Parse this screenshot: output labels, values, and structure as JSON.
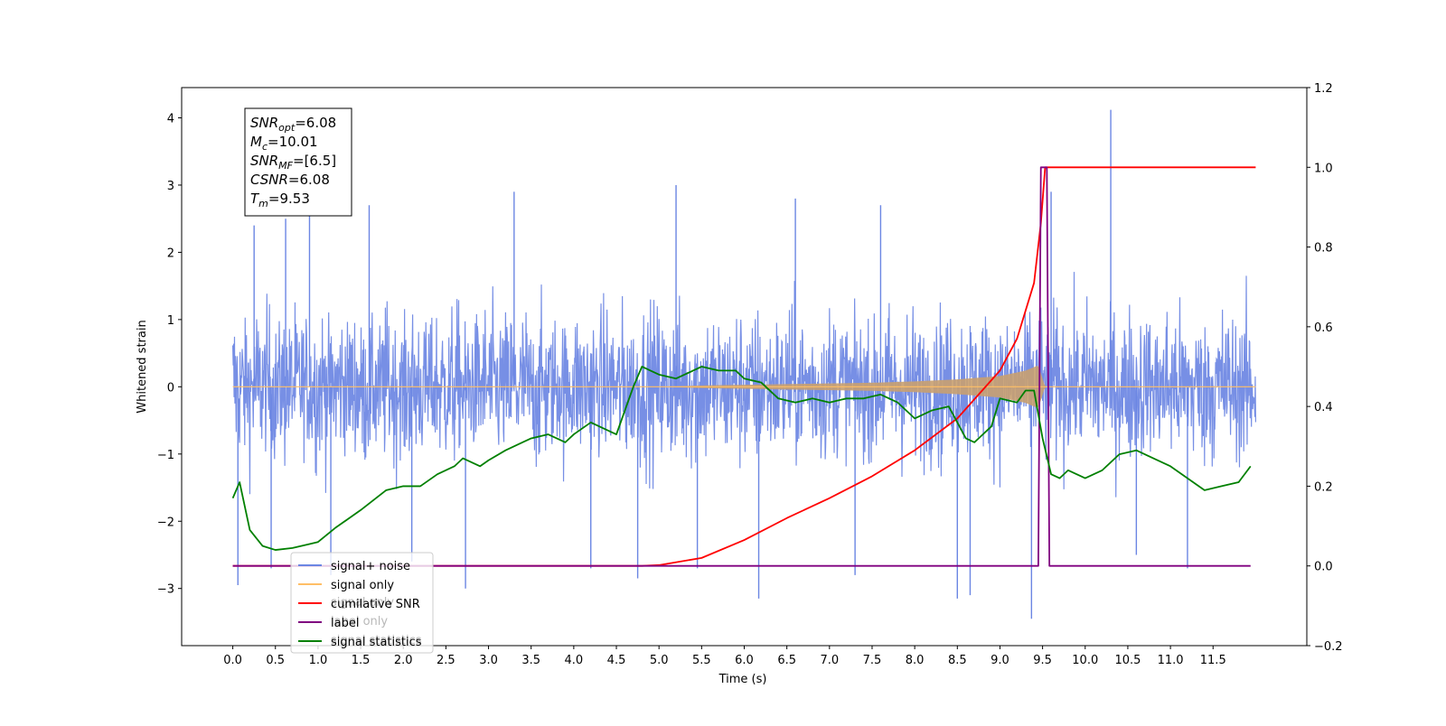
{
  "chart_data": {
    "type": "line",
    "xlabel": "Time (s)",
    "ylabel_left": "Whitened strain",
    "ylabel_right": "",
    "xlim": [
      -0.6,
      12.6
    ],
    "ylim_left": [
      -3.85,
      4.45
    ],
    "ylim_right": [
      -0.2,
      1.2
    ],
    "x_ticks": [
      "0.0",
      "0.5",
      "1.0",
      "1.5",
      "2.0",
      "2.5",
      "3.0",
      "3.5",
      "4.0",
      "4.5",
      "5.0",
      "5.5",
      "6.0",
      "6.5",
      "7.0",
      "7.5",
      "8.0",
      "8.5",
      "9.0",
      "9.5",
      "10.0",
      "10.5",
      "11.0",
      "11.5"
    ],
    "y_ticks_left": [
      "−3",
      "−2",
      "−1",
      "0",
      "1",
      "2",
      "3",
      "4"
    ],
    "y_ticks_right": [
      "−0.2",
      "0.0",
      "0.2",
      "0.4",
      "0.6",
      "0.8",
      "1.0",
      "1.2"
    ],
    "grid": false,
    "legend_position": "lower-left",
    "legend": [
      {
        "label": "signal+ noise",
        "color": "#6b86e3"
      },
      {
        "label": "signal only",
        "color": "#ffbf66"
      },
      {
        "label": "cumilative SNR",
        "color": "#ff0000"
      },
      {
        "label": "label",
        "color": "#800080"
      },
      {
        "label": "signal statistics",
        "color": "#008000"
      }
    ],
    "legend_hidden_text": [
      "signal only",
      "label only",
      "signal statistics"
    ],
    "annotation": [
      {
        "base": "SNR",
        "sub": "opt",
        "value": "=6.08"
      },
      {
        "base": "M",
        "sub": "c",
        "value": "=10.01"
      },
      {
        "base": "SNR",
        "sub": "MF",
        "value": "=[6.5]"
      },
      {
        "base": "CSNR",
        "sub": "",
        "value": "=6.08"
      },
      {
        "base": "T",
        "sub": "m",
        "value": "=9.53"
      }
    ],
    "series": [
      {
        "name": "signal+ noise",
        "axis": "left",
        "color": "#6b86e3",
        "x_range": [
          0.0,
          12.0
        ],
        "typical_envelope": [
          -1.8,
          1.8
        ],
        "x": [
          0.06,
          0.25,
          0.45,
          0.62,
          0.9,
          1.15,
          1.6,
          2.1,
          2.73,
          3.3,
          4.2,
          4.75,
          5.2,
          5.45,
          6.17,
          6.6,
          7.3,
          7.6,
          8.5,
          8.65,
          9.37,
          9.6,
          10.3,
          10.6,
          11.2
        ],
        "y": [
          -2.95,
          2.4,
          -2.7,
          2.5,
          3.0,
          -2.8,
          2.7,
          -2.6,
          -3.0,
          2.9,
          -2.7,
          -2.85,
          3.0,
          -2.7,
          -3.15,
          2.8,
          -2.8,
          2.7,
          -3.15,
          -3.1,
          -3.45,
          2.9,
          4.12,
          -2.5,
          -2.7
        ]
      },
      {
        "name": "signal only",
        "axis": "left",
        "color": "#ffbf66",
        "x": [
          0.0,
          5.0,
          5.5,
          6.0,
          6.5,
          7.0,
          7.5,
          8.0,
          8.5,
          9.0,
          9.3,
          9.45,
          9.53,
          12.0
        ],
        "amplitude": [
          0.0,
          0.0,
          0.02,
          0.03,
          0.04,
          0.05,
          0.06,
          0.08,
          0.11,
          0.16,
          0.24,
          0.32,
          0.0,
          0.0
        ]
      },
      {
        "name": "cumilative SNR",
        "axis": "right",
        "color": "#ff0000",
        "x": [
          0.0,
          4.8,
          5.0,
          5.5,
          6.0,
          6.5,
          7.0,
          7.5,
          8.0,
          8.5,
          9.0,
          9.2,
          9.4,
          9.48,
          9.53,
          12.0
        ],
        "y": [
          0.0,
          0.0,
          0.002,
          0.02,
          0.065,
          0.12,
          0.17,
          0.225,
          0.29,
          0.37,
          0.49,
          0.57,
          0.71,
          0.86,
          1.0,
          1.0
        ]
      },
      {
        "name": "label",
        "axis": "right",
        "color": "#800080",
        "x": [
          0.0,
          9.45,
          9.48,
          9.55,
          9.58,
          11.94
        ],
        "y": [
          0.0,
          0.0,
          1.0,
          1.0,
          0.0,
          0.0
        ]
      },
      {
        "name": "signal statistics",
        "axis": "right",
        "color": "#008000",
        "x": [
          0.0,
          0.08,
          0.2,
          0.35,
          0.5,
          0.7,
          0.9,
          1.0,
          1.2,
          1.5,
          1.8,
          2.0,
          2.2,
          2.4,
          2.6,
          2.7,
          2.9,
          3.0,
          3.2,
          3.4,
          3.5,
          3.7,
          3.9,
          4.0,
          4.2,
          4.4,
          4.5,
          4.6,
          4.7,
          4.8,
          4.9,
          5.0,
          5.2,
          5.5,
          5.7,
          5.9,
          6.0,
          6.2,
          6.4,
          6.6,
          6.8,
          7.0,
          7.2,
          7.4,
          7.6,
          7.8,
          8.0,
          8.2,
          8.4,
          8.6,
          8.7,
          8.9,
          9.0,
          9.2,
          9.3,
          9.4,
          9.5,
          9.6,
          9.7,
          9.8,
          10.0,
          10.2,
          10.4,
          10.6,
          10.8,
          11.0,
          11.2,
          11.4,
          11.6,
          11.8,
          11.94
        ],
        "y": [
          0.17,
          0.21,
          0.09,
          0.05,
          0.04,
          0.045,
          0.055,
          0.06,
          0.095,
          0.14,
          0.19,
          0.2,
          0.2,
          0.23,
          0.25,
          0.27,
          0.25,
          0.265,
          0.29,
          0.31,
          0.32,
          0.33,
          0.31,
          0.33,
          0.36,
          0.34,
          0.33,
          0.39,
          0.45,
          0.5,
          0.49,
          0.48,
          0.47,
          0.5,
          0.49,
          0.49,
          0.47,
          0.46,
          0.42,
          0.41,
          0.42,
          0.41,
          0.42,
          0.42,
          0.43,
          0.41,
          0.37,
          0.39,
          0.4,
          0.32,
          0.31,
          0.35,
          0.42,
          0.41,
          0.44,
          0.44,
          0.32,
          0.23,
          0.22,
          0.24,
          0.22,
          0.24,
          0.28,
          0.29,
          0.27,
          0.25,
          0.22,
          0.19,
          0.2,
          0.21,
          0.25
        ]
      }
    ]
  }
}
